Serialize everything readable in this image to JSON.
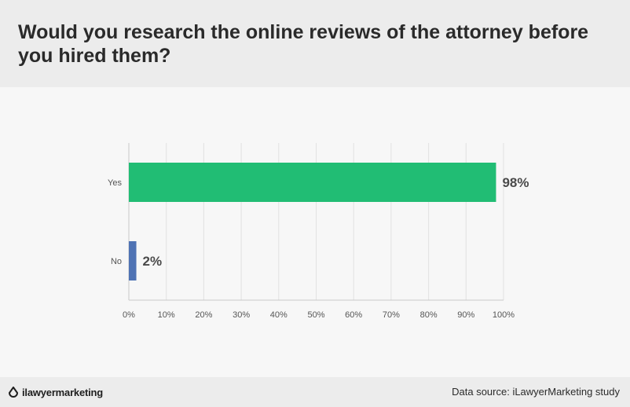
{
  "header": {
    "title": "Would you research the online reviews of the attorney before you hired them?"
  },
  "chart_data": {
    "type": "bar",
    "orientation": "horizontal",
    "categories": [
      "Yes",
      "No"
    ],
    "values": [
      98,
      2
    ],
    "value_labels": [
      "98%",
      "2%"
    ],
    "colors": [
      "#21bd74",
      "#4f73b4"
    ],
    "xlim": [
      0,
      100
    ],
    "x_ticks": [
      "0%",
      "10%",
      "20%",
      "30%",
      "40%",
      "50%",
      "60%",
      "70%",
      "80%",
      "90%",
      "100%"
    ],
    "grid": true,
    "legend": "none"
  },
  "footer": {
    "logo_text": "ilawyermarketing",
    "logo_icon": "droplet-icon",
    "source": "Data source: iLawyerMarketing study"
  }
}
